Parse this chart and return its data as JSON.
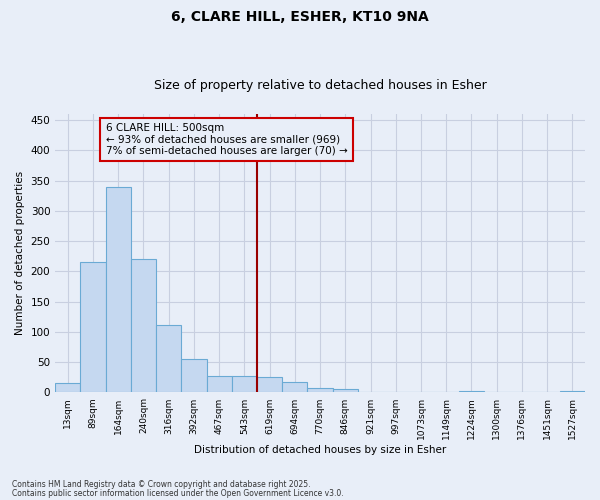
{
  "title": "6, CLARE HILL, ESHER, KT10 9NA",
  "subtitle": "Size of property relative to detached houses in Esher",
  "xlabel": "Distribution of detached houses by size in Esher",
  "ylabel": "Number of detached properties",
  "categories": [
    "13sqm",
    "89sqm",
    "164sqm",
    "240sqm",
    "316sqm",
    "392sqm",
    "467sqm",
    "543sqm",
    "619sqm",
    "694sqm",
    "770sqm",
    "846sqm",
    "921sqm",
    "997sqm",
    "1073sqm",
    "1149sqm",
    "1224sqm",
    "1300sqm",
    "1376sqm",
    "1451sqm",
    "1527sqm"
  ],
  "values": [
    15,
    215,
    340,
    220,
    112,
    55,
    27,
    27,
    25,
    18,
    8,
    5,
    0,
    0,
    0,
    0,
    2,
    0,
    0,
    0,
    2
  ],
  "bar_color": "#c5d8f0",
  "bar_edge_color": "#6aaad4",
  "background_color": "#e8eef8",
  "grid_color": "#c8cfe0",
  "vline_x": 7.5,
  "vline_color": "#990000",
  "annotation_text": "6 CLARE HILL: 500sqm\n← 93% of detached houses are smaller (969)\n7% of semi-detached houses are larger (70) →",
  "annotation_box_color": "#cc0000",
  "ylim": [
    0,
    460
  ],
  "yticks": [
    0,
    50,
    100,
    150,
    200,
    250,
    300,
    350,
    400,
    450
  ],
  "footnote1": "Contains HM Land Registry data © Crown copyright and database right 2025.",
  "footnote2": "Contains public sector information licensed under the Open Government Licence v3.0."
}
